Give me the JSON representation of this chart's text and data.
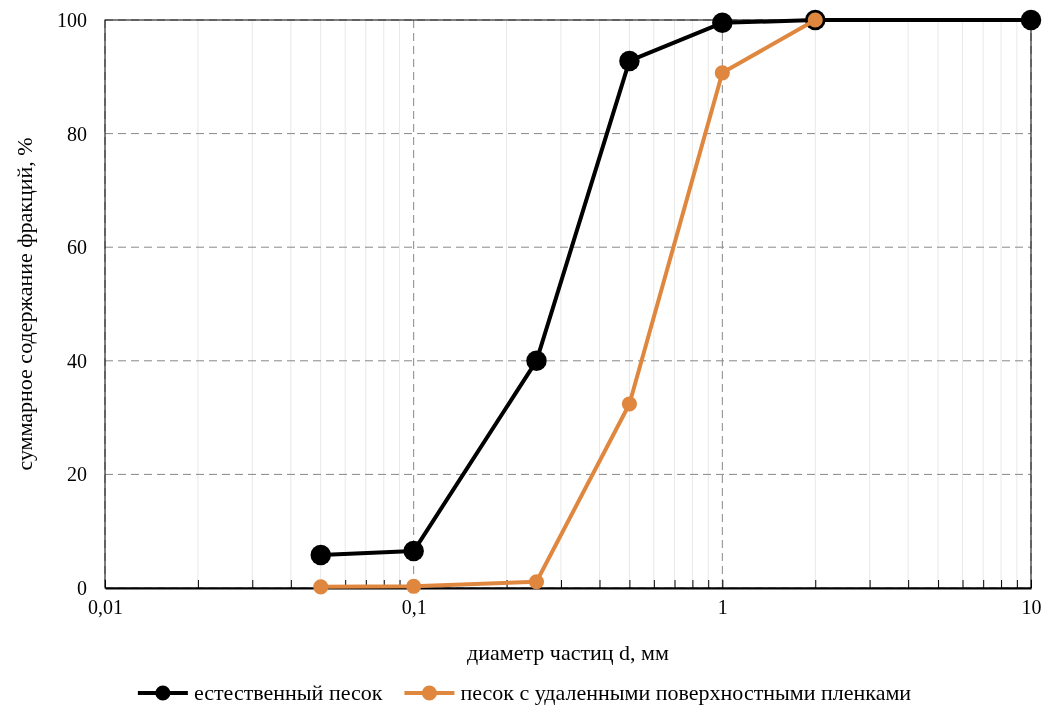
{
  "chart_data": {
    "type": "line",
    "xlabel": "диаметр частиц d, мм",
    "ylabel": "суммарное содержание фракций, %",
    "log": "x",
    "grid": true,
    "legend": "bottom",
    "marker": "circle",
    "line_style": "solid",
    "xlim": [
      0.01,
      10
    ],
    "ylim": [
      0,
      100
    ],
    "xticks": [
      {
        "value": 0.01,
        "label": "0,01"
      },
      {
        "value": 0.02,
        "label": null
      },
      {
        "value": 0.03,
        "label": null
      },
      {
        "value": 0.04,
        "label": null
      },
      {
        "value": 0.05,
        "label": null
      },
      {
        "value": 0.06,
        "label": null
      },
      {
        "value": 0.07,
        "label": null
      },
      {
        "value": 0.08,
        "label": null
      },
      {
        "value": 0.09,
        "label": null
      },
      {
        "value": 0.1,
        "label": "0,1"
      },
      {
        "value": 0.2,
        "label": null
      },
      {
        "value": 0.3,
        "label": null
      },
      {
        "value": 0.4,
        "label": null
      },
      {
        "value": 0.5,
        "label": null
      },
      {
        "value": 0.6,
        "label": null
      },
      {
        "value": 0.7,
        "label": null
      },
      {
        "value": 0.8,
        "label": null
      },
      {
        "value": 0.9,
        "label": null
      },
      1,
      {
        "value": 2,
        "label": null
      },
      {
        "value": 3,
        "label": null
      },
      {
        "value": 4,
        "label": null
      },
      {
        "value": 5,
        "label": null
      },
      {
        "value": 6,
        "label": null
      },
      {
        "value": 7,
        "label": null
      },
      {
        "value": 8,
        "label": null
      },
      {
        "value": 9,
        "label": null
      },
      10
    ],
    "yticks": [
      0,
      20,
      40,
      60,
      80,
      100
    ],
    "series": [
      {
        "name": "естественный песок",
        "color": "#000000",
        "x": [
          0.05,
          0.1,
          0.25,
          0.5,
          1,
          2,
          10
        ],
        "values": [
          5.8,
          6.5,
          40,
          92.8,
          99.5,
          100,
          100
        ]
      },
      {
        "name": "песок с удаленными поверхностными пленками",
        "color": "#e0873f",
        "x": [
          0.05,
          0.1,
          0.25,
          0.5,
          1,
          2
        ],
        "values": [
          0.2,
          0.3,
          1.1,
          32.4,
          90.7,
          100
        ]
      }
    ]
  }
}
